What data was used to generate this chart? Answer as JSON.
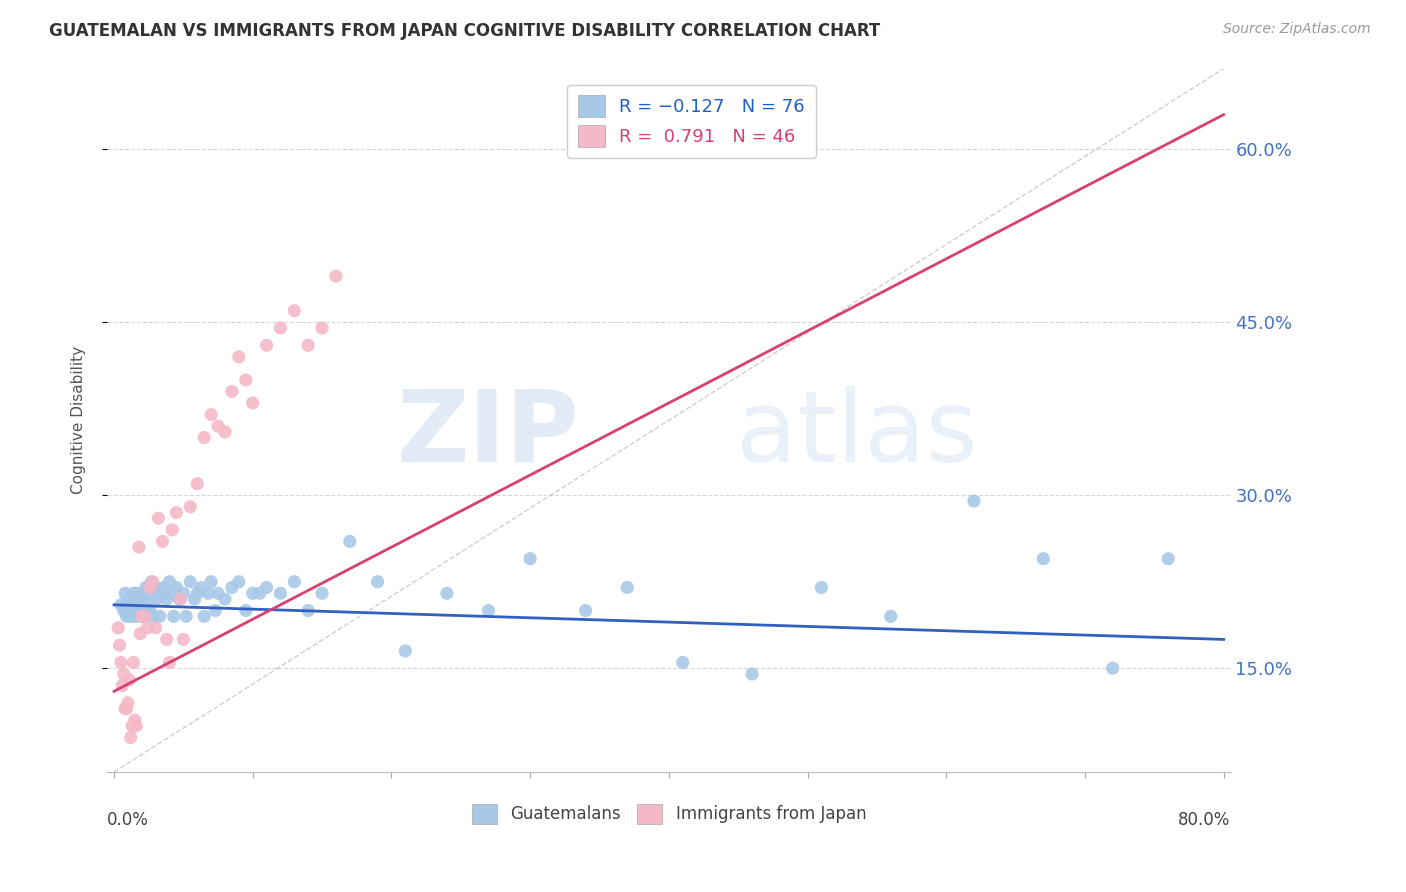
{
  "title": "GUATEMALAN VS IMMIGRANTS FROM JAPAN COGNITIVE DISABILITY CORRELATION CHART",
  "source": "Source: ZipAtlas.com",
  "ylabel": "Cognitive Disability",
  "yticks": [
    0.15,
    0.3,
    0.45,
    0.6
  ],
  "ytick_labels": [
    "15.0%",
    "30.0%",
    "45.0%",
    "60.0%"
  ],
  "xlim": [
    -0.005,
    0.805
  ],
  "ylim": [
    0.06,
    0.67
  ],
  "watermark_zip": "ZIP",
  "watermark_atlas": "atlas",
  "legend_blue_r": "R = -0.127",
  "legend_blue_n": "N = 76",
  "legend_pink_r": "R =  0.791",
  "legend_pink_n": "N = 46",
  "blue_color": "#a8c8e8",
  "pink_color": "#f4b8c8",
  "blue_line_color": "#3060c0",
  "pink_line_color": "#d84070",
  "blue_trend": [
    0.0,
    0.8,
    0.205,
    0.175
  ],
  "pink_trend": [
    0.0,
    0.8,
    0.13,
    0.63
  ],
  "diag_line": [
    0.0,
    0.8,
    0.06,
    0.67
  ],
  "scatter_blue_x": [
    0.005,
    0.007,
    0.008,
    0.009,
    0.01,
    0.01,
    0.011,
    0.012,
    0.013,
    0.014,
    0.015,
    0.015,
    0.016,
    0.017,
    0.018,
    0.019,
    0.02,
    0.02,
    0.021,
    0.022,
    0.023,
    0.024,
    0.025,
    0.026,
    0.027,
    0.028,
    0.03,
    0.031,
    0.032,
    0.033,
    0.035,
    0.036,
    0.038,
    0.04,
    0.042,
    0.043,
    0.045,
    0.047,
    0.05,
    0.052,
    0.055,
    0.058,
    0.06,
    0.063,
    0.065,
    0.068,
    0.07,
    0.073,
    0.075,
    0.08,
    0.085,
    0.09,
    0.095,
    0.1,
    0.105,
    0.11,
    0.12,
    0.13,
    0.14,
    0.15,
    0.17,
    0.19,
    0.21,
    0.24,
    0.27,
    0.3,
    0.34,
    0.37,
    0.41,
    0.46,
    0.51,
    0.56,
    0.62,
    0.67,
    0.72,
    0.76
  ],
  "scatter_blue_y": [
    0.205,
    0.2,
    0.215,
    0.195,
    0.205,
    0.2,
    0.21,
    0.195,
    0.205,
    0.215,
    0.2,
    0.195,
    0.215,
    0.205,
    0.21,
    0.195,
    0.215,
    0.2,
    0.21,
    0.195,
    0.22,
    0.205,
    0.215,
    0.2,
    0.225,
    0.195,
    0.22,
    0.21,
    0.215,
    0.195,
    0.215,
    0.22,
    0.21,
    0.225,
    0.215,
    0.195,
    0.22,
    0.21,
    0.215,
    0.195,
    0.225,
    0.21,
    0.215,
    0.22,
    0.195,
    0.215,
    0.225,
    0.2,
    0.215,
    0.21,
    0.22,
    0.225,
    0.2,
    0.215,
    0.215,
    0.22,
    0.215,
    0.225,
    0.2,
    0.215,
    0.26,
    0.225,
    0.165,
    0.215,
    0.2,
    0.245,
    0.2,
    0.22,
    0.155,
    0.145,
    0.22,
    0.195,
    0.295,
    0.245,
    0.15,
    0.245
  ],
  "scatter_pink_x": [
    0.003,
    0.004,
    0.005,
    0.006,
    0.007,
    0.008,
    0.009,
    0.01,
    0.011,
    0.012,
    0.013,
    0.014,
    0.015,
    0.016,
    0.018,
    0.019,
    0.02,
    0.022,
    0.024,
    0.026,
    0.028,
    0.03,
    0.032,
    0.035,
    0.038,
    0.04,
    0.042,
    0.045,
    0.048,
    0.05,
    0.055,
    0.06,
    0.065,
    0.07,
    0.075,
    0.08,
    0.085,
    0.09,
    0.095,
    0.1,
    0.11,
    0.12,
    0.13,
    0.14,
    0.15,
    0.16
  ],
  "scatter_pink_y": [
    0.185,
    0.17,
    0.155,
    0.135,
    0.145,
    0.115,
    0.115,
    0.12,
    0.14,
    0.09,
    0.1,
    0.155,
    0.105,
    0.1,
    0.255,
    0.18,
    0.195,
    0.195,
    0.185,
    0.22,
    0.225,
    0.185,
    0.28,
    0.26,
    0.175,
    0.155,
    0.27,
    0.285,
    0.21,
    0.175,
    0.29,
    0.31,
    0.35,
    0.37,
    0.36,
    0.355,
    0.39,
    0.42,
    0.4,
    0.38,
    0.43,
    0.445,
    0.46,
    0.43,
    0.445,
    0.49
  ]
}
